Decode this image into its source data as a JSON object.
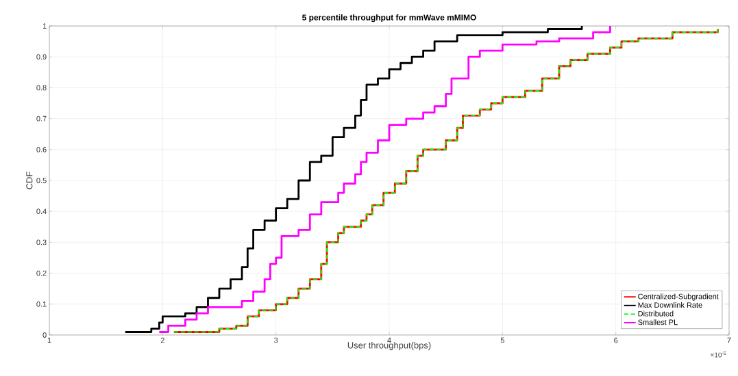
{
  "chart_data": {
    "type": "step",
    "title": "5 percentile throughput for mmWave mMIMO",
    "xlabel": "User throughput(bps)",
    "ylabel": "CDF",
    "annotations": [
      "×10$^{-5}$"
    ],
    "xlim": [
      1,
      7
    ],
    "ylim": [
      0,
      1
    ],
    "xticks": [
      1,
      2,
      3,
      4,
      5,
      6,
      7
    ],
    "yticks": [
      0,
      0.1,
      0.2,
      0.3,
      0.4,
      0.5,
      0.6,
      0.7,
      0.8,
      0.9,
      1
    ],
    "grid": true,
    "legend": "bottom right",
    "series": [
      {
        "name": "Centralized-Subgradient",
        "color": "#ff0000",
        "line_style": "solid",
        "x": [
          2.1,
          2.5,
          2.65,
          2.75,
          2.85,
          3.0,
          3.1,
          3.2,
          3.3,
          3.4,
          3.45,
          3.55,
          3.6,
          3.75,
          3.8,
          3.85,
          3.95,
          4.05,
          4.15,
          4.25,
          4.3,
          4.5,
          4.6,
          4.65,
          4.8,
          4.9,
          5.0,
          5.2,
          5.35,
          5.5,
          5.6,
          5.75,
          5.95,
          6.05,
          6.2,
          6.5,
          6.9
        ],
        "values": [
          0.01,
          0.02,
          0.03,
          0.06,
          0.08,
          0.1,
          0.12,
          0.15,
          0.18,
          0.23,
          0.3,
          0.33,
          0.35,
          0.37,
          0.39,
          0.42,
          0.46,
          0.49,
          0.53,
          0.58,
          0.6,
          0.63,
          0.67,
          0.71,
          0.73,
          0.75,
          0.77,
          0.79,
          0.83,
          0.87,
          0.89,
          0.91,
          0.93,
          0.95,
          0.96,
          0.98,
          0.99
        ]
      },
      {
        "name": "Max Downlink Rate",
        "color": "#000000",
        "line_style": "solid",
        "x": [
          1.67,
          1.9,
          1.97,
          2.0,
          2.2,
          2.3,
          2.4,
          2.5,
          2.6,
          2.7,
          2.75,
          2.8,
          2.9,
          3.0,
          3.1,
          3.2,
          3.3,
          3.4,
          3.5,
          3.6,
          3.7,
          3.75,
          3.8,
          3.9,
          4.0,
          4.1,
          4.2,
          4.3,
          4.4,
          4.6,
          5.0,
          5.4,
          5.7
        ],
        "values": [
          0.01,
          0.02,
          0.04,
          0.06,
          0.07,
          0.09,
          0.12,
          0.15,
          0.18,
          0.22,
          0.28,
          0.34,
          0.37,
          0.41,
          0.44,
          0.5,
          0.56,
          0.58,
          0.64,
          0.67,
          0.71,
          0.76,
          0.81,
          0.83,
          0.86,
          0.88,
          0.9,
          0.92,
          0.95,
          0.97,
          0.98,
          0.99,
          1.0
        ]
      },
      {
        "name": "Distributed",
        "color": "#00ff00",
        "line_style": "dashed",
        "x": [
          2.1,
          2.5,
          2.65,
          2.75,
          2.85,
          3.0,
          3.1,
          3.2,
          3.3,
          3.4,
          3.45,
          3.55,
          3.6,
          3.75,
          3.8,
          3.85,
          3.95,
          4.05,
          4.15,
          4.25,
          4.3,
          4.5,
          4.6,
          4.65,
          4.8,
          4.9,
          5.0,
          5.2,
          5.35,
          5.5,
          5.6,
          5.75,
          5.95,
          6.05,
          6.2,
          6.5,
          6.9
        ],
        "values": [
          0.01,
          0.02,
          0.03,
          0.06,
          0.08,
          0.1,
          0.12,
          0.15,
          0.18,
          0.23,
          0.3,
          0.33,
          0.35,
          0.37,
          0.39,
          0.42,
          0.46,
          0.49,
          0.53,
          0.58,
          0.6,
          0.63,
          0.67,
          0.71,
          0.73,
          0.75,
          0.77,
          0.79,
          0.83,
          0.87,
          0.89,
          0.91,
          0.93,
          0.95,
          0.96,
          0.98,
          0.99
        ]
      },
      {
        "name": "Smallest PL",
        "color": "#ff00ff",
        "line_style": "solid",
        "x": [
          1.97,
          2.05,
          2.2,
          2.3,
          2.4,
          2.7,
          2.8,
          2.9,
          2.95,
          3.0,
          3.05,
          3.2,
          3.3,
          3.4,
          3.55,
          3.6,
          3.7,
          3.75,
          3.8,
          3.9,
          4.0,
          4.15,
          4.3,
          4.4,
          4.5,
          4.55,
          4.7,
          4.8,
          5.0,
          5.3,
          5.5,
          5.8,
          5.95
        ],
        "values": [
          0.01,
          0.03,
          0.05,
          0.07,
          0.09,
          0.11,
          0.14,
          0.18,
          0.23,
          0.25,
          0.32,
          0.34,
          0.39,
          0.43,
          0.46,
          0.49,
          0.52,
          0.56,
          0.59,
          0.63,
          0.68,
          0.7,
          0.72,
          0.74,
          0.78,
          0.83,
          0.9,
          0.92,
          0.94,
          0.95,
          0.96,
          0.98,
          1.0
        ]
      }
    ]
  }
}
